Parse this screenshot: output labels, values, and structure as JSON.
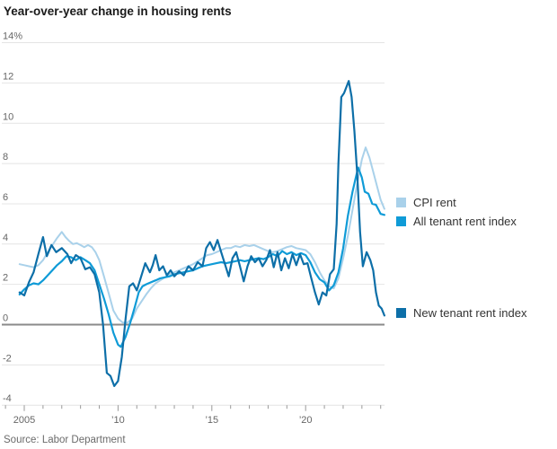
{
  "chart": {
    "title": "Year-over-year change in housing rents",
    "source": "Source: Labor Department"
  },
  "chart_data": {
    "type": "line",
    "title": "Year-over-year change in housing rents",
    "xlabel": "",
    "ylabel": "",
    "y_unit_suffix": "%",
    "ylim": [
      -4,
      14
    ],
    "ytick_step": 2,
    "ytick_top_label": "14%",
    "xlim": [
      2004.6,
      2024.4
    ],
    "xtick_year_start": 2004,
    "xtick_year_end": 2024,
    "xtick_labels": [
      {
        "year": 2005,
        "label": "2005"
      },
      {
        "year": 2010,
        "label": "’10"
      },
      {
        "year": 2015,
        "label": "’15"
      },
      {
        "year": 2020,
        "label": "’20"
      }
    ],
    "grid": "horizontal",
    "zero_line": true,
    "legend_position": "right",
    "colors": {
      "grid": "#e4e4e4",
      "zero_line": "#8a8a8a",
      "tick": "#999999",
      "axis_text": "#666666"
    },
    "series": [
      {
        "name": "CPI rent",
        "color": "#a9d1ea",
        "line_width": 2,
        "points": [
          [
            2004.75,
            3.0
          ],
          [
            2005,
            2.95
          ],
          [
            2005.25,
            2.9
          ],
          [
            2005.5,
            2.85
          ],
          [
            2005.75,
            2.95
          ],
          [
            2006,
            3.2
          ],
          [
            2006.25,
            3.6
          ],
          [
            2006.5,
            3.95
          ],
          [
            2006.75,
            4.3
          ],
          [
            2007,
            4.6
          ],
          [
            2007.2,
            4.35
          ],
          [
            2007.4,
            4.15
          ],
          [
            2007.6,
            4.0
          ],
          [
            2007.8,
            4.05
          ],
          [
            2008,
            3.95
          ],
          [
            2008.2,
            3.85
          ],
          [
            2008.4,
            3.95
          ],
          [
            2008.6,
            3.85
          ],
          [
            2008.8,
            3.6
          ],
          [
            2009,
            3.2
          ],
          [
            2009.25,
            2.4
          ],
          [
            2009.5,
            1.55
          ],
          [
            2009.75,
            0.7
          ],
          [
            2010,
            0.3
          ],
          [
            2010.25,
            0.1
          ],
          [
            2010.5,
            0.1
          ],
          [
            2010.75,
            0.3
          ],
          [
            2011,
            0.8
          ],
          [
            2011.25,
            1.15
          ],
          [
            2011.5,
            1.5
          ],
          [
            2011.75,
            1.8
          ],
          [
            2012,
            2.05
          ],
          [
            2012.25,
            2.2
          ],
          [
            2012.5,
            2.35
          ],
          [
            2012.75,
            2.5
          ],
          [
            2013,
            2.6
          ],
          [
            2013.25,
            2.7
          ],
          [
            2013.5,
            2.8
          ],
          [
            2013.75,
            2.9
          ],
          [
            2014,
            3.0
          ],
          [
            2014.25,
            3.15
          ],
          [
            2014.5,
            3.3
          ],
          [
            2014.75,
            3.45
          ],
          [
            2015,
            3.5
          ],
          [
            2015.25,
            3.6
          ],
          [
            2015.5,
            3.7
          ],
          [
            2015.75,
            3.8
          ],
          [
            2016,
            3.8
          ],
          [
            2016.25,
            3.9
          ],
          [
            2016.5,
            3.85
          ],
          [
            2016.75,
            3.95
          ],
          [
            2017,
            3.9
          ],
          [
            2017.25,
            3.95
          ],
          [
            2017.5,
            3.85
          ],
          [
            2017.75,
            3.75
          ],
          [
            2018,
            3.65
          ],
          [
            2018.25,
            3.6
          ],
          [
            2018.5,
            3.65
          ],
          [
            2018.75,
            3.75
          ],
          [
            2019,
            3.85
          ],
          [
            2019.25,
            3.9
          ],
          [
            2019.5,
            3.8
          ],
          [
            2019.75,
            3.75
          ],
          [
            2020,
            3.7
          ],
          [
            2020.25,
            3.5
          ],
          [
            2020.5,
            3.1
          ],
          [
            2020.75,
            2.6
          ],
          [
            2021,
            2.2
          ],
          [
            2021.25,
            1.9
          ],
          [
            2021.5,
            1.8
          ],
          [
            2021.75,
            2.3
          ],
          [
            2022,
            3.3
          ],
          [
            2022.25,
            4.4
          ],
          [
            2022.5,
            5.7
          ],
          [
            2022.75,
            7.0
          ],
          [
            2023,
            8.2
          ],
          [
            2023.2,
            8.8
          ],
          [
            2023.4,
            8.3
          ],
          [
            2023.6,
            7.6
          ],
          [
            2023.8,
            6.9
          ],
          [
            2024,
            6.2
          ],
          [
            2024.2,
            5.75
          ]
        ]
      },
      {
        "name": "All tenant rent index",
        "color": "#0f9bd7",
        "line_width": 2.2,
        "points": [
          [
            2004.75,
            1.5
          ],
          [
            2005,
            1.75
          ],
          [
            2005.25,
            1.95
          ],
          [
            2005.5,
            2.05
          ],
          [
            2005.75,
            2.0
          ],
          [
            2006,
            2.2
          ],
          [
            2006.25,
            2.45
          ],
          [
            2006.5,
            2.7
          ],
          [
            2006.75,
            2.95
          ],
          [
            2007,
            3.15
          ],
          [
            2007.25,
            3.4
          ],
          [
            2007.5,
            3.35
          ],
          [
            2007.75,
            3.2
          ],
          [
            2008,
            3.35
          ],
          [
            2008.25,
            3.2
          ],
          [
            2008.5,
            3.05
          ],
          [
            2008.75,
            2.7
          ],
          [
            2009,
            2.0
          ],
          [
            2009.25,
            1.3
          ],
          [
            2009.5,
            0.5
          ],
          [
            2009.75,
            -0.4
          ],
          [
            2010,
            -1.0
          ],
          [
            2010.15,
            -1.1
          ],
          [
            2010.4,
            -0.6
          ],
          [
            2010.65,
            0.1
          ],
          [
            2010.9,
            0.9
          ],
          [
            2011.1,
            1.6
          ],
          [
            2011.3,
            1.9
          ],
          [
            2011.5,
            2.0
          ],
          [
            2011.75,
            2.1
          ],
          [
            2012,
            2.2
          ],
          [
            2012.25,
            2.3
          ],
          [
            2012.5,
            2.35
          ],
          [
            2012.75,
            2.4
          ],
          [
            2013,
            2.5
          ],
          [
            2013.25,
            2.55
          ],
          [
            2013.5,
            2.6
          ],
          [
            2013.75,
            2.65
          ],
          [
            2014,
            2.7
          ],
          [
            2014.25,
            2.8
          ],
          [
            2014.5,
            2.9
          ],
          [
            2014.75,
            2.95
          ],
          [
            2015,
            3.0
          ],
          [
            2015.25,
            3.05
          ],
          [
            2015.5,
            3.1
          ],
          [
            2015.75,
            3.05
          ],
          [
            2016,
            3.1
          ],
          [
            2016.25,
            3.15
          ],
          [
            2016.5,
            3.2
          ],
          [
            2016.75,
            3.15
          ],
          [
            2017,
            3.2
          ],
          [
            2017.25,
            3.25
          ],
          [
            2017.5,
            3.3
          ],
          [
            2017.75,
            3.25
          ],
          [
            2018,
            3.35
          ],
          [
            2018.25,
            3.5
          ],
          [
            2018.5,
            3.4
          ],
          [
            2018.75,
            3.65
          ],
          [
            2019,
            3.5
          ],
          [
            2019.25,
            3.6
          ],
          [
            2019.5,
            3.45
          ],
          [
            2019.75,
            3.55
          ],
          [
            2020,
            3.45
          ],
          [
            2020.25,
            3.1
          ],
          [
            2020.5,
            2.6
          ],
          [
            2020.75,
            2.25
          ],
          [
            2021,
            2.1
          ],
          [
            2021.25,
            1.7
          ],
          [
            2021.5,
            1.95
          ],
          [
            2021.75,
            2.6
          ],
          [
            2022,
            3.8
          ],
          [
            2022.25,
            5.4
          ],
          [
            2022.5,
            6.6
          ],
          [
            2022.65,
            7.2
          ],
          [
            2022.8,
            7.8
          ],
          [
            2023,
            7.3
          ],
          [
            2023.15,
            6.6
          ],
          [
            2023.35,
            6.5
          ],
          [
            2023.55,
            6.0
          ],
          [
            2023.75,
            5.95
          ],
          [
            2024,
            5.5
          ],
          [
            2024.2,
            5.45
          ]
        ]
      },
      {
        "name": "New tenant rent index",
        "color": "#0d6fa8",
        "line_width": 2.2,
        "points": [
          [
            2004.75,
            1.6
          ],
          [
            2005,
            1.45
          ],
          [
            2005.25,
            2.1
          ],
          [
            2005.5,
            2.6
          ],
          [
            2005.75,
            3.5
          ],
          [
            2006,
            4.35
          ],
          [
            2006.2,
            3.4
          ],
          [
            2006.45,
            3.95
          ],
          [
            2006.7,
            3.6
          ],
          [
            2007,
            3.8
          ],
          [
            2007.3,
            3.5
          ],
          [
            2007.5,
            3.05
          ],
          [
            2007.75,
            3.45
          ],
          [
            2008,
            3.3
          ],
          [
            2008.25,
            2.75
          ],
          [
            2008.5,
            2.85
          ],
          [
            2008.75,
            2.5
          ],
          [
            2009,
            1.6
          ],
          [
            2009.2,
            0.0
          ],
          [
            2009.4,
            -2.4
          ],
          [
            2009.6,
            -2.55
          ],
          [
            2009.8,
            -3.05
          ],
          [
            2010,
            -2.8
          ],
          [
            2010.2,
            -1.6
          ],
          [
            2010.4,
            0.3
          ],
          [
            2010.6,
            1.9
          ],
          [
            2010.8,
            2.05
          ],
          [
            2011,
            1.7
          ],
          [
            2011.2,
            2.3
          ],
          [
            2011.45,
            3.05
          ],
          [
            2011.7,
            2.6
          ],
          [
            2011.85,
            2.95
          ],
          [
            2012,
            3.45
          ],
          [
            2012.2,
            2.7
          ],
          [
            2012.4,
            2.9
          ],
          [
            2012.6,
            2.45
          ],
          [
            2012.8,
            2.7
          ],
          [
            2013,
            2.4
          ],
          [
            2013.25,
            2.65
          ],
          [
            2013.5,
            2.45
          ],
          [
            2013.75,
            2.9
          ],
          [
            2014,
            2.7
          ],
          [
            2014.25,
            3.1
          ],
          [
            2014.5,
            2.9
          ],
          [
            2014.7,
            3.8
          ],
          [
            2014.9,
            4.1
          ],
          [
            2015.1,
            3.7
          ],
          [
            2015.3,
            4.2
          ],
          [
            2015.5,
            3.6
          ],
          [
            2015.7,
            3.0
          ],
          [
            2015.9,
            2.4
          ],
          [
            2016.1,
            3.3
          ],
          [
            2016.3,
            3.6
          ],
          [
            2016.5,
            2.9
          ],
          [
            2016.7,
            2.15
          ],
          [
            2016.9,
            2.9
          ],
          [
            2017.1,
            3.4
          ],
          [
            2017.3,
            3.1
          ],
          [
            2017.5,
            3.3
          ],
          [
            2017.7,
            2.9
          ],
          [
            2017.9,
            3.2
          ],
          [
            2018.1,
            3.7
          ],
          [
            2018.3,
            2.85
          ],
          [
            2018.5,
            3.6
          ],
          [
            2018.7,
            2.7
          ],
          [
            2018.9,
            3.3
          ],
          [
            2019.1,
            2.8
          ],
          [
            2019.3,
            3.5
          ],
          [
            2019.5,
            2.95
          ],
          [
            2019.7,
            3.5
          ],
          [
            2019.9,
            3.0
          ],
          [
            2020.1,
            3.05
          ],
          [
            2020.3,
            2.3
          ],
          [
            2020.5,
            1.6
          ],
          [
            2020.7,
            1.0
          ],
          [
            2020.9,
            1.6
          ],
          [
            2021.1,
            1.45
          ],
          [
            2021.3,
            2.5
          ],
          [
            2021.5,
            2.75
          ],
          [
            2021.65,
            5.0
          ],
          [
            2021.75,
            8.0
          ],
          [
            2021.9,
            11.3
          ],
          [
            2022.05,
            11.5
          ],
          [
            2022.3,
            12.1
          ],
          [
            2022.45,
            11.3
          ],
          [
            2022.6,
            9.6
          ],
          [
            2022.75,
            7.5
          ],
          [
            2022.9,
            4.6
          ],
          [
            2023.05,
            2.9
          ],
          [
            2023.25,
            3.6
          ],
          [
            2023.45,
            3.2
          ],
          [
            2023.6,
            2.7
          ],
          [
            2023.75,
            1.6
          ],
          [
            2023.9,
            0.95
          ],
          [
            2024.05,
            0.8
          ],
          [
            2024.2,
            0.45
          ]
        ]
      }
    ]
  }
}
